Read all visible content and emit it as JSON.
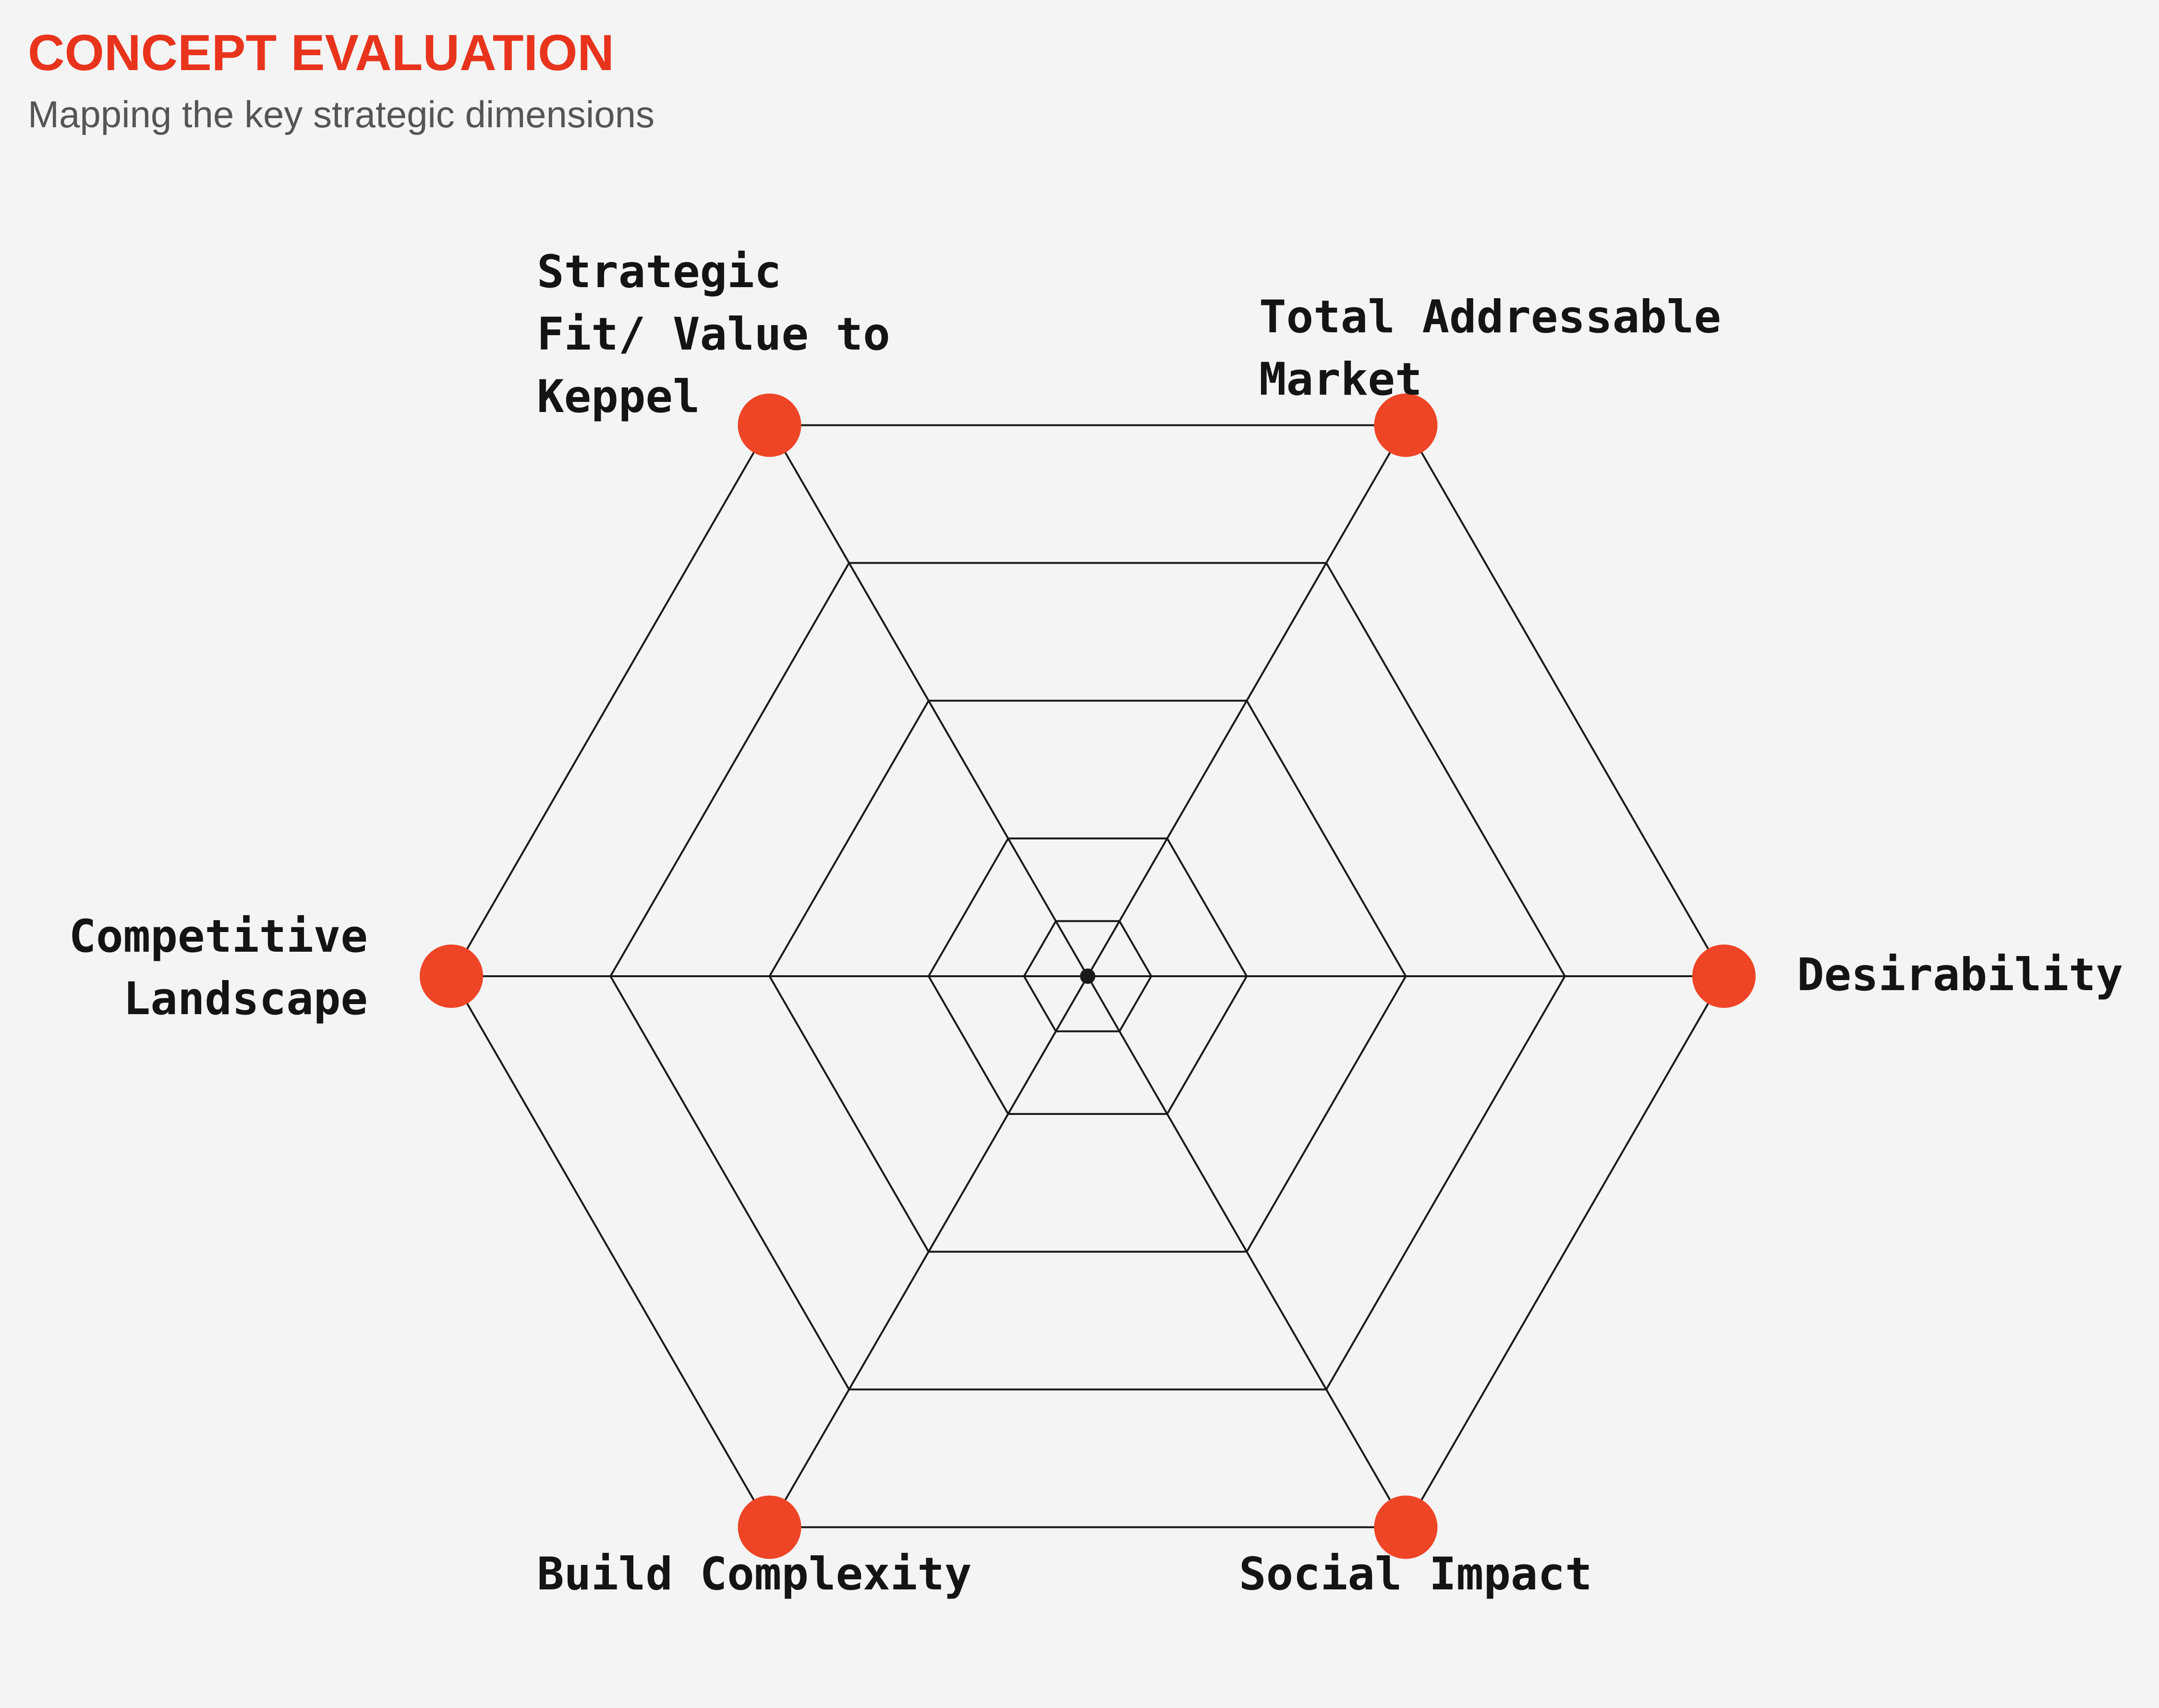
{
  "header": {
    "title": "CONCEPT EVALUATION",
    "subtitle": "Mapping the key strategic dimensions"
  },
  "colors": {
    "background": "#f4f4f4",
    "accent": "#e8341c",
    "marker": "#ee4527",
    "grid": "#1a1a1a",
    "text": "#141414",
    "subtitle": "#555555"
  },
  "chart_data": {
    "type": "radar",
    "rings": 5,
    "axes": [
      {
        "key": "desirability",
        "lines": [
          "Desirability"
        ]
      },
      {
        "key": "total-addressable-market",
        "lines": [
          "Total Addressable",
          "Market"
        ]
      },
      {
        "key": "strategic-fit",
        "lines": [
          "Strategic",
          "Fit/ Value to",
          "Keppel"
        ]
      },
      {
        "key": "competitive-landscape",
        "lines": [
          "Competitive",
          "Landscape"
        ]
      },
      {
        "key": "build-complexity",
        "lines": [
          "Build Complexity"
        ]
      },
      {
        "key": "social-impact",
        "lines": [
          "Social Impact"
        ]
      }
    ]
  }
}
